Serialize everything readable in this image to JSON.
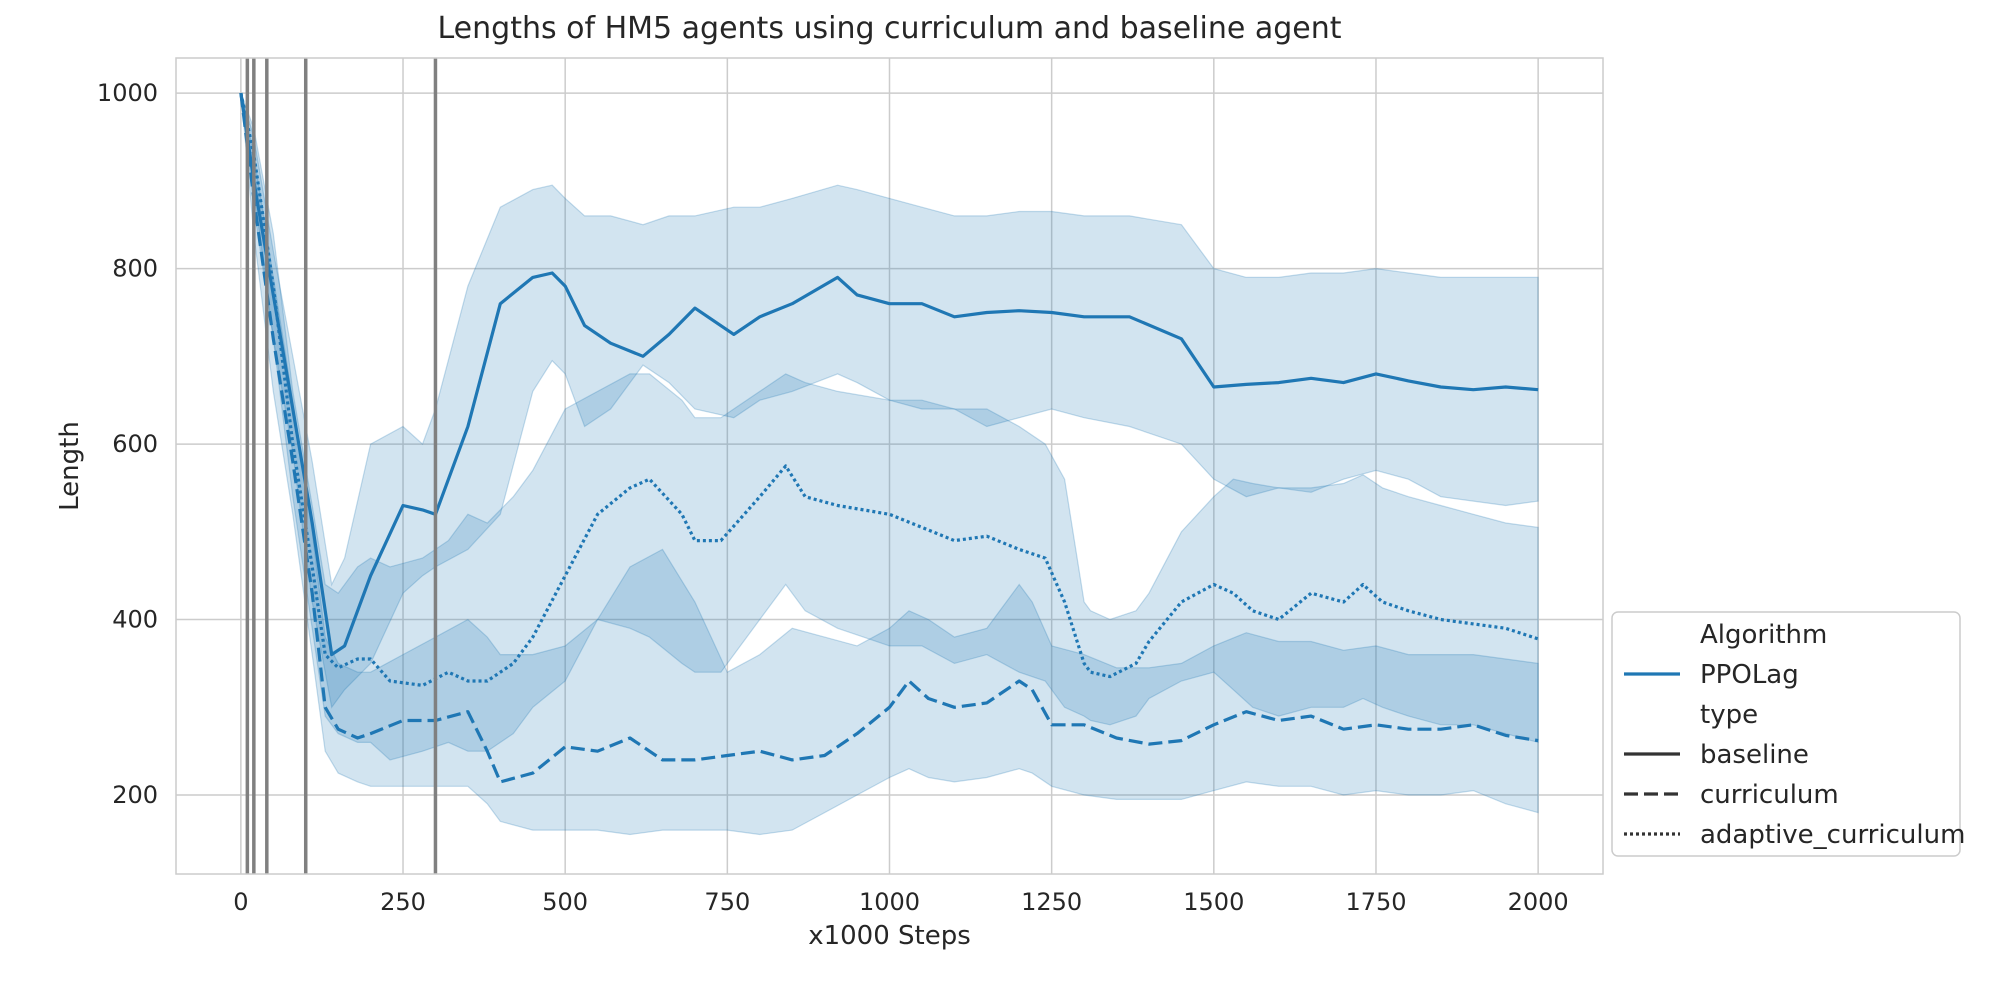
{
  "chart_data": {
    "type": "line",
    "title": "Lengths of HM5 agents using curriculum and baseline agent",
    "xlabel": "x1000 Steps",
    "ylabel": "Length",
    "xlim": [
      -100,
      2100
    ],
    "ylim": [
      110,
      1040
    ],
    "xticks": [
      0,
      250,
      500,
      750,
      1000,
      1250,
      1500,
      1750,
      2000
    ],
    "yticks": [
      200,
      400,
      600,
      800,
      1000
    ],
    "grid": true,
    "vlines": [
      10,
      20,
      40,
      100,
      300
    ],
    "colors": {
      "line": "#1f77b4",
      "band": "#1f77b4",
      "vline": "#808080",
      "grid": "#cccccc",
      "legend_dark": "#333333"
    },
    "legend": {
      "placement": "lower-right outside",
      "entries": [
        {
          "label": "Algorithm",
          "style": "header"
        },
        {
          "label": "PPOLag",
          "style": "color"
        },
        {
          "label": "type",
          "style": "header"
        },
        {
          "label": "baseline",
          "style": "solid"
        },
        {
          "label": "curriculum",
          "style": "dashed"
        },
        {
          "label": "adaptive_curriculum",
          "style": "dotted"
        }
      ]
    },
    "series": [
      {
        "type": "baseline",
        "style": "solid",
        "x": [
          0,
          20,
          50,
          80,
          110,
          140,
          160,
          200,
          250,
          280,
          300,
          350,
          400,
          450,
          480,
          500,
          530,
          570,
          620,
          660,
          700,
          760,
          800,
          850,
          920,
          950,
          1000,
          1050,
          1100,
          1150,
          1200,
          1250,
          1300,
          1370,
          1450,
          1500,
          1550,
          1600,
          1650,
          1700,
          1750,
          1800,
          1850,
          1900,
          1950,
          2000
        ],
        "mean": [
          1000,
          900,
          770,
          640,
          510,
          360,
          370,
          450,
          530,
          525,
          520,
          620,
          760,
          790,
          795,
          780,
          735,
          715,
          700,
          725,
          755,
          725,
          745,
          760,
          790,
          770,
          760,
          760,
          745,
          750,
          752,
          750,
          745,
          745,
          720,
          665,
          668,
          670,
          675,
          670,
          680,
          672,
          665,
          662,
          665,
          662
        ],
        "upper": [
          1000,
          950,
          820,
          700,
          580,
          440,
          470,
          600,
          620,
          600,
          640,
          780,
          870,
          890,
          895,
          880,
          860,
          860,
          850,
          860,
          860,
          870,
          870,
          880,
          895,
          890,
          880,
          870,
          860,
          860,
          865,
          865,
          860,
          860,
          850,
          800,
          790,
          790,
          795,
          795,
          800,
          795,
          790,
          790,
          790,
          790
        ],
        "lower": [
          1000,
          870,
          720,
          590,
          420,
          300,
          320,
          350,
          430,
          450,
          460,
          480,
          520,
          660,
          695,
          680,
          620,
          640,
          690,
          670,
          640,
          630,
          650,
          660,
          680,
          670,
          650,
          640,
          640,
          620,
          630,
          640,
          630,
          620,
          600,
          560,
          540,
          550,
          545,
          560,
          570,
          560,
          540,
          535,
          530,
          535
        ]
      },
      {
        "type": "curriculum",
        "style": "dashed",
        "x": [
          0,
          20,
          50,
          80,
          110,
          130,
          150,
          180,
          200,
          250,
          300,
          350,
          380,
          400,
          450,
          500,
          550,
          600,
          650,
          700,
          750,
          800,
          850,
          900,
          950,
          1000,
          1030,
          1060,
          1100,
          1150,
          1200,
          1220,
          1250,
          1300,
          1350,
          1400,
          1450,
          1500,
          1550,
          1600,
          1650,
          1700,
          1750,
          1800,
          1850,
          1900,
          1950,
          2000
        ],
        "mean": [
          1000,
          880,
          720,
          580,
          430,
          300,
          275,
          265,
          270,
          285,
          285,
          295,
          250,
          215,
          225,
          255,
          250,
          265,
          240,
          240,
          245,
          250,
          240,
          245,
          270,
          300,
          330,
          310,
          300,
          305,
          330,
          320,
          280,
          280,
          265,
          258,
          262,
          280,
          295,
          285,
          290,
          275,
          280,
          275,
          275,
          280,
          268,
          262
        ],
        "upper": [
          1000,
          930,
          790,
          650,
          500,
          380,
          350,
          340,
          340,
          360,
          380,
          400,
          380,
          360,
          360,
          370,
          400,
          460,
          480,
          420,
          340,
          360,
          390,
          380,
          370,
          390,
          410,
          400,
          380,
          390,
          440,
          420,
          370,
          360,
          345,
          345,
          350,
          370,
          385,
          375,
          375,
          365,
          370,
          360,
          360,
          360,
          355,
          350
        ],
        "lower": [
          1000,
          840,
          660,
          520,
          360,
          250,
          225,
          215,
          210,
          210,
          210,
          210,
          190,
          170,
          160,
          160,
          160,
          155,
          160,
          160,
          160,
          155,
          160,
          180,
          200,
          220,
          230,
          220,
          215,
          220,
          230,
          225,
          210,
          200,
          195,
          195,
          195,
          205,
          215,
          210,
          210,
          200,
          205,
          200,
          200,
          205,
          190,
          180
        ]
      },
      {
        "type": "adaptive_curriculum",
        "style": "dotted",
        "x": [
          0,
          20,
          50,
          80,
          110,
          130,
          150,
          180,
          200,
          230,
          280,
          320,
          350,
          380,
          420,
          450,
          500,
          550,
          600,
          630,
          680,
          700,
          740,
          800,
          840,
          870,
          920,
          1000,
          1050,
          1100,
          1150,
          1200,
          1240,
          1270,
          1300,
          1310,
          1340,
          1380,
          1400,
          1450,
          1500,
          1530,
          1560,
          1600,
          1650,
          1700,
          1730,
          1760,
          1800,
          1850,
          1900,
          1950,
          2000
        ],
        "mean": [
          1000,
          930,
          780,
          600,
          460,
          360,
          345,
          355,
          355,
          330,
          325,
          340,
          330,
          330,
          350,
          380,
          450,
          520,
          550,
          560,
          520,
          490,
          490,
          540,
          575,
          540,
          530,
          520,
          505,
          490,
          495,
          480,
          470,
          420,
          350,
          340,
          335,
          350,
          375,
          420,
          440,
          430,
          410,
          400,
          430,
          420,
          440,
          420,
          410,
          400,
          395,
          390,
          378
        ],
        "upper": [
          1000,
          960,
          840,
          660,
          530,
          440,
          430,
          460,
          470,
          460,
          470,
          490,
          520,
          510,
          540,
          570,
          640,
          660,
          680,
          680,
          650,
          630,
          630,
          660,
          680,
          670,
          660,
          650,
          650,
          640,
          640,
          620,
          600,
          560,
          420,
          410,
          400,
          410,
          430,
          500,
          540,
          560,
          555,
          550,
          550,
          555,
          565,
          550,
          540,
          530,
          520,
          510,
          505
        ],
        "lower": [
          1000,
          890,
          720,
          540,
          390,
          290,
          270,
          260,
          260,
          240,
          250,
          260,
          250,
          250,
          270,
          300,
          330,
          400,
          390,
          380,
          350,
          340,
          340,
          400,
          440,
          410,
          390,
          370,
          370,
          350,
          360,
          340,
          330,
          300,
          290,
          285,
          280,
          290,
          310,
          330,
          340,
          320,
          300,
          290,
          300,
          300,
          310,
          300,
          290,
          280,
          280,
          270,
          260
        ]
      }
    ]
  }
}
